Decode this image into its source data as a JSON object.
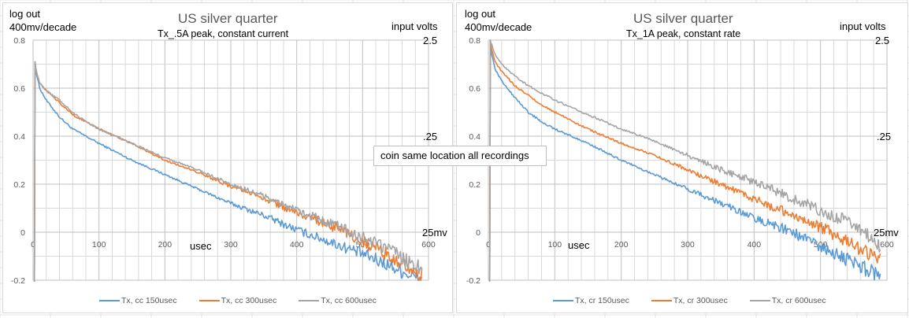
{
  "annotation": "coin same location all recordings",
  "colors": {
    "series1": "#5b9bd5",
    "series2": "#ed7d31",
    "series3": "#a5a5a5",
    "grid": "#d9d9d9",
    "gridMajor": "#bfbfbf"
  },
  "chart_data": [
    {
      "type": "line",
      "title": "US silver quarter",
      "subtitle": "Tx_.5A peak, constant current",
      "ylabel_line1": "log out",
      "ylabel_line2": "400mv/decade",
      "xlabel": "usec",
      "right_axis_label": "input volts",
      "right_axis_ticks": [
        "2.5",
        ".25",
        "25mv"
      ],
      "xlim": [
        0,
        600
      ],
      "ylim": [
        -0.2,
        0.8
      ],
      "x_ticks": [
        "0",
        "100",
        "200",
        "300",
        "400",
        "500",
        "600"
      ],
      "y_ticks": [
        "0.8",
        "0.6",
        "0.4",
        "0.2",
        "0",
        "-0.2"
      ],
      "grid": true,
      "legend": "bottom",
      "series": [
        {
          "name": "Tx, cc 150usec",
          "x": [
            3,
            5,
            10,
            20,
            40,
            60,
            80,
            100,
            150,
            200,
            250,
            300,
            350,
            400,
            450,
            500,
            550,
            590
          ],
          "y": [
            0.71,
            0.66,
            0.6,
            0.55,
            0.48,
            0.43,
            0.4,
            0.37,
            0.3,
            0.24,
            0.18,
            0.12,
            0.07,
            0.01,
            -0.04,
            -0.09,
            -0.15,
            -0.2
          ]
        },
        {
          "name": "Tx, cc 300usec",
          "x": [
            3,
            5,
            10,
            20,
            40,
            60,
            80,
            100,
            150,
            200,
            250,
            300,
            350,
            400,
            450,
            500,
            550,
            590
          ],
          "y": [
            0.71,
            0.67,
            0.62,
            0.59,
            0.54,
            0.49,
            0.46,
            0.43,
            0.37,
            0.3,
            0.25,
            0.19,
            0.14,
            0.08,
            0.03,
            -0.04,
            -0.11,
            -0.18
          ]
        },
        {
          "name": "Tx, cc 600usec",
          "x": [
            3,
            5,
            10,
            20,
            40,
            60,
            80,
            100,
            150,
            200,
            250,
            300,
            350,
            400,
            450,
            500,
            550,
            590
          ],
          "y": [
            0.71,
            0.67,
            0.62,
            0.59,
            0.55,
            0.5,
            0.46,
            0.43,
            0.37,
            0.31,
            0.26,
            0.2,
            0.15,
            0.09,
            0.04,
            -0.02,
            -0.09,
            -0.15
          ]
        }
      ]
    },
    {
      "type": "line",
      "title": "US silver quarter",
      "subtitle": "Tx_1A peak, constant rate",
      "ylabel_line1": "log out",
      "ylabel_line2": "400mv/decade",
      "xlabel": "usec",
      "right_axis_label": "input volts",
      "right_axis_ticks": [
        "2.5",
        ".25",
        "25mv"
      ],
      "xlim": [
        0,
        600
      ],
      "ylim": [
        -0.2,
        0.8
      ],
      "x_ticks": [
        "0",
        "100",
        "200",
        "300",
        "400",
        "500",
        "600"
      ],
      "y_ticks": [
        "0.8",
        "0.6",
        "0.4",
        "0.2",
        "0",
        "-0.2"
      ],
      "grid": true,
      "legend": "bottom",
      "series": [
        {
          "name": "Tx, cr 150usec",
          "x": [
            3,
            5,
            10,
            20,
            40,
            60,
            80,
            100,
            150,
            200,
            250,
            300,
            350,
            400,
            450,
            500,
            550,
            590
          ],
          "y": [
            0.8,
            0.74,
            0.68,
            0.63,
            0.56,
            0.5,
            0.46,
            0.43,
            0.37,
            0.3,
            0.24,
            0.18,
            0.12,
            0.06,
            0.01,
            -0.06,
            -0.13,
            -0.18
          ]
        },
        {
          "name": "Tx, cr 300usec",
          "x": [
            3,
            5,
            10,
            20,
            40,
            60,
            80,
            100,
            150,
            200,
            250,
            300,
            350,
            400,
            450,
            500,
            550,
            590
          ],
          "y": [
            0.8,
            0.76,
            0.71,
            0.67,
            0.61,
            0.57,
            0.53,
            0.5,
            0.43,
            0.37,
            0.32,
            0.26,
            0.2,
            0.14,
            0.08,
            0.02,
            -0.05,
            -0.12
          ]
        },
        {
          "name": "Tx, cr 600usec",
          "x": [
            3,
            5,
            10,
            20,
            40,
            60,
            80,
            100,
            150,
            200,
            250,
            300,
            350,
            400,
            450,
            500,
            550,
            590
          ],
          "y": [
            0.8,
            0.78,
            0.74,
            0.7,
            0.65,
            0.61,
            0.58,
            0.55,
            0.49,
            0.43,
            0.38,
            0.32,
            0.26,
            0.21,
            0.15,
            0.09,
            0.04,
            -0.06
          ]
        }
      ]
    }
  ]
}
